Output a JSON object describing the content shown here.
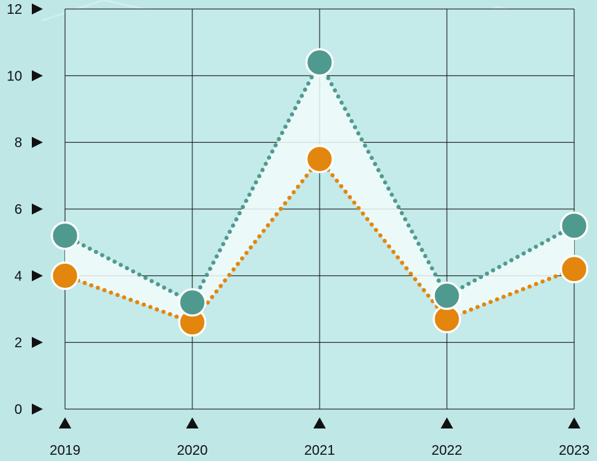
{
  "chart_data": {
    "type": "line",
    "categories": [
      "2019",
      "2020",
      "2021",
      "2022",
      "2023"
    ],
    "y_ticks": [
      "0",
      "2",
      "4",
      "6",
      "8",
      "10",
      "12"
    ],
    "ylim": [
      0,
      12
    ],
    "grid": true,
    "series": [
      {
        "values": [
          5.2,
          3.2,
          10.4,
          3.4,
          5.5
        ],
        "color": "#4f9a8f"
      },
      {
        "values": [
          4.0,
          2.6,
          7.5,
          2.7,
          4.2
        ],
        "color": "#e3860d"
      }
    ],
    "colors": {
      "background": "#bfe7e6",
      "plot_background": "#c4eaea",
      "grid": "#111111",
      "band_fill": "#f2fbfb"
    }
  }
}
